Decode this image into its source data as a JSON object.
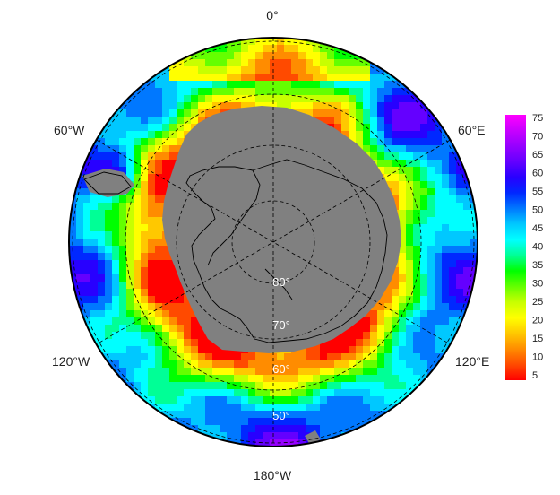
{
  "map": {
    "projection": "south polar stereographic",
    "longitude_labels": {
      "top": "0°",
      "upper_left": "60°W",
      "upper_right": "60°E",
      "lower_left": "120°W",
      "lower_right": "120°E",
      "bottom": "180°W"
    },
    "latitude_labels": [
      "80°",
      "70°",
      "60°",
      "50°"
    ],
    "land_color": "#808080",
    "frame_color": "#000000"
  },
  "colorbar": {
    "min": 0,
    "max": 75,
    "ticks": [
      "75",
      "70",
      "65",
      "60",
      "55",
      "50",
      "45",
      "40",
      "35",
      "30",
      "25",
      "20",
      "15",
      "10",
      "5"
    ],
    "palette": [
      "#ff0000",
      "#ff4a00",
      "#ff8c00",
      "#ffc800",
      "#ffff00",
      "#c8ff00",
      "#64ff00",
      "#00ff00",
      "#00ff96",
      "#00ffff",
      "#00c8ff",
      "#0078ff",
      "#0028ff",
      "#2800ff",
      "#6400ff",
      "#9600ff",
      "#c800ff",
      "#ff00ff"
    ]
  }
}
